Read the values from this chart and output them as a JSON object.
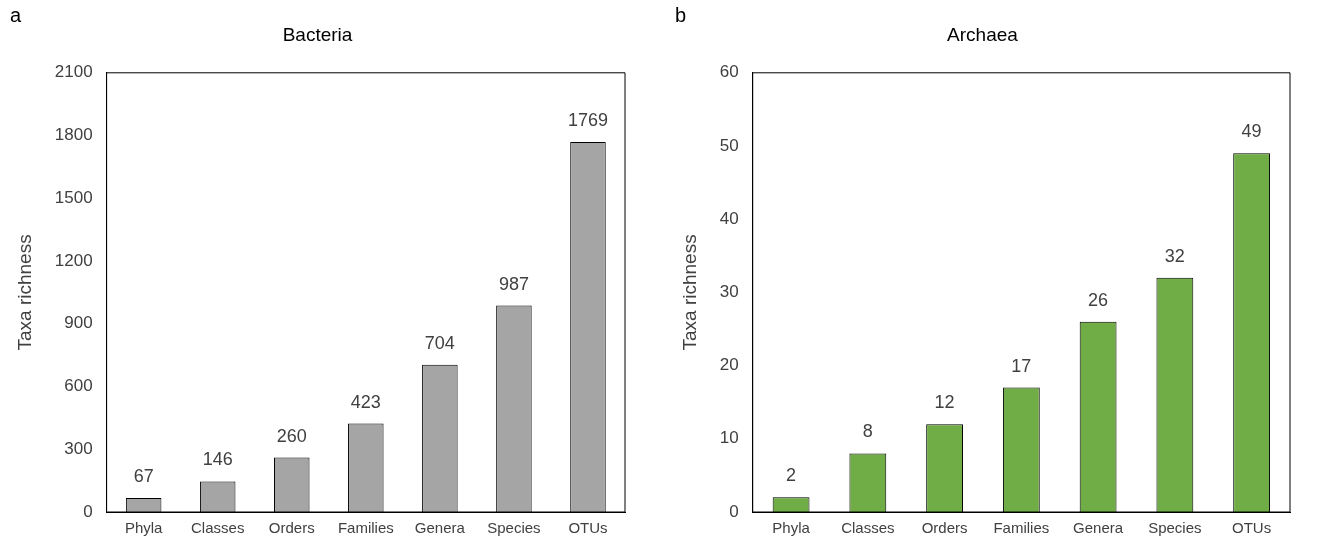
{
  "chart_data": [
    {
      "type": "bar",
      "annotations": [
        "a"
      ],
      "title": "Bacteria",
      "ylabel": "Taxa richness",
      "categories": [
        "Phyla",
        "Classes",
        "Orders",
        "Families",
        "Genera",
        "Species",
        "OTUs"
      ],
      "values": [
        67,
        146,
        260,
        423,
        704,
        987,
        1769
      ],
      "color": "#a5a5a5",
      "ylim": [
        0,
        2100
      ],
      "yticks": [
        0,
        300,
        600,
        900,
        1200,
        1500,
        1800,
        2100
      ],
      "data_labels": true,
      "grid": false,
      "legend": false
    },
    {
      "type": "bar",
      "annotations": [
        "b"
      ],
      "title": "Archaea",
      "ylabel": "Taxa richness",
      "categories": [
        "Phyla",
        "Classes",
        "Orders",
        "Families",
        "Genera",
        "Species",
        "OTUs"
      ],
      "values": [
        2,
        8,
        12,
        17,
        26,
        32,
        49
      ],
      "color": "#70ad47",
      "ylim": [
        0,
        60
      ],
      "yticks": [
        0,
        10,
        20,
        30,
        40,
        50,
        60
      ],
      "data_labels": true,
      "grid": false,
      "legend": false
    }
  ]
}
